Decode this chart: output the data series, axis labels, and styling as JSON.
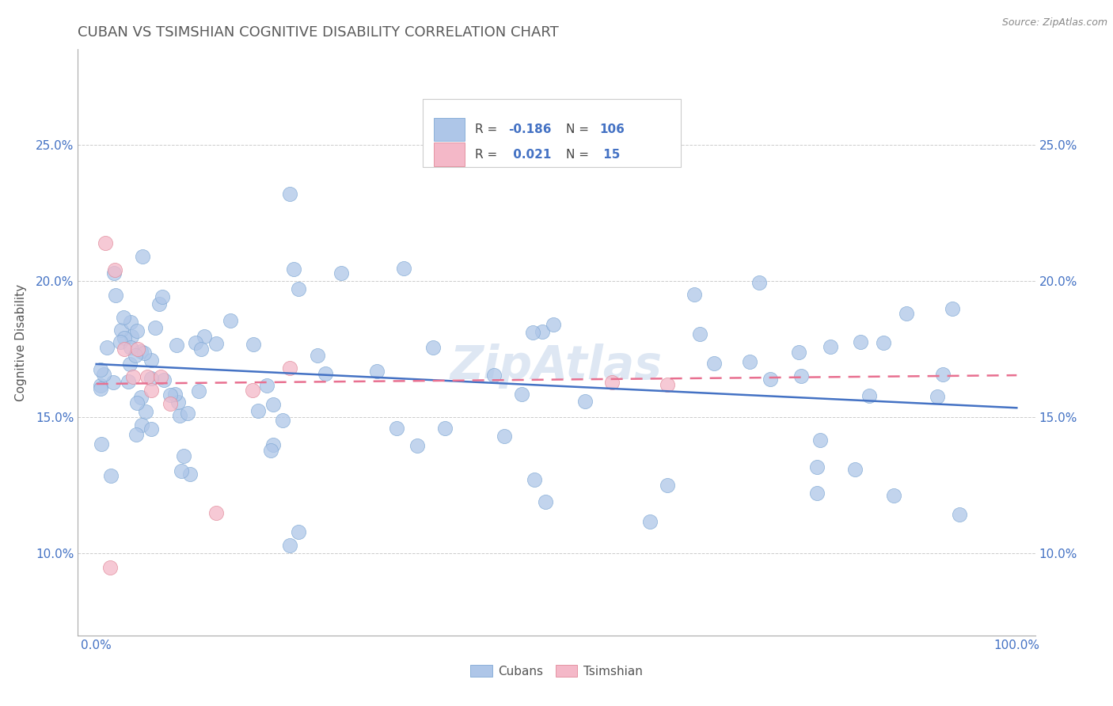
{
  "title": "CUBAN VS TSIMSHIAN COGNITIVE DISABILITY CORRELATION CHART",
  "source": "Source: ZipAtlas.com",
  "ylabel": "Cognitive Disability",
  "yticks_labels": [
    "10.0%",
    "15.0%",
    "20.0%",
    "25.0%"
  ],
  "ytick_vals": [
    0.1,
    0.15,
    0.2,
    0.25
  ],
  "xtick_labels": [
    "0.0%",
    "100.0%"
  ],
  "xtick_vals": [
    0.0,
    1.0
  ],
  "xlim": [
    -0.02,
    1.02
  ],
  "ylim": [
    0.07,
    0.285
  ],
  "title_color": "#5a5a5a",
  "title_fontsize": 13,
  "source_color": "#888888",
  "ylabel_color": "#555555",
  "ytick_color": "#4472c4",
  "xtick_color": "#4472c4",
  "grid_color": "#cccccc",
  "cubans_face_color": "#aec6e8",
  "tsimshian_face_color": "#f4b8c8",
  "cubans_edge_color": "#7fa8d4",
  "tsimshian_edge_color": "#e08898",
  "cubans_line_color": "#4472c4",
  "tsimshian_line_color": "#e87090",
  "legend_text_color": "#4472c4",
  "legend_label_color": "#555555",
  "watermark_color": "#c8d8ec",
  "background_color": "#ffffff"
}
